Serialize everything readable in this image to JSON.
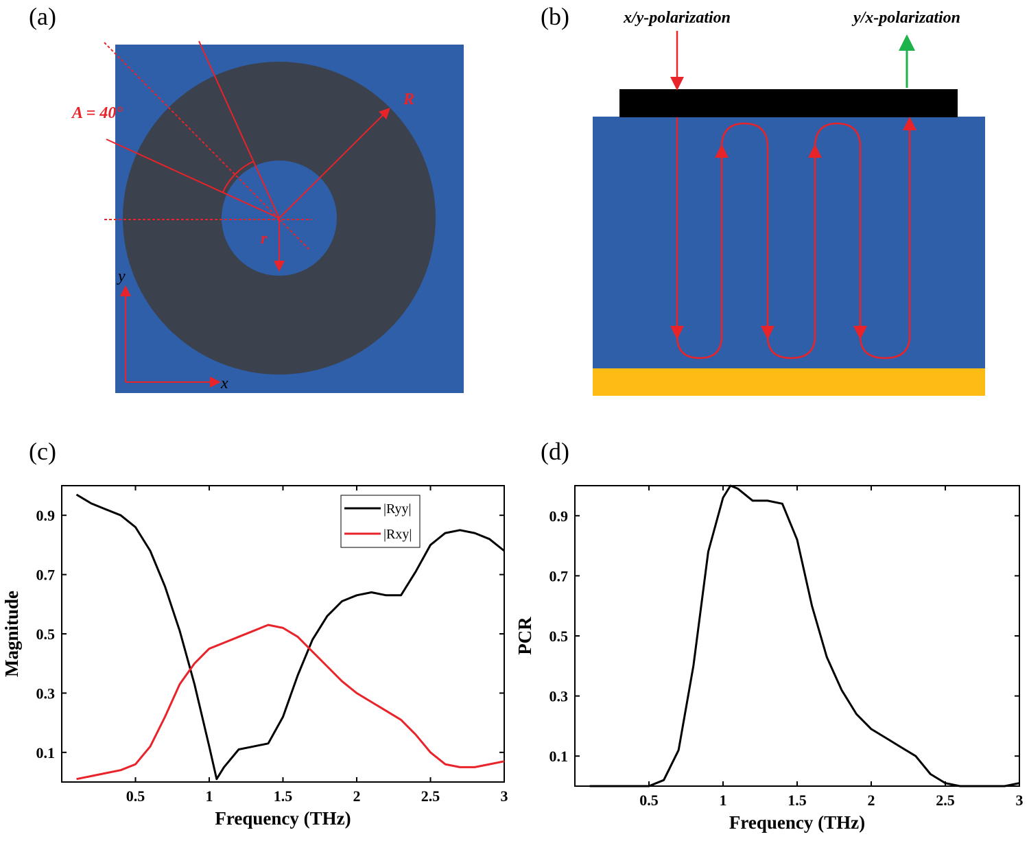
{
  "panel_labels": [
    "(a)",
    "(b)",
    "(c)",
    "(d)"
  ],
  "diagram_a": {
    "angle_label": "A = 40°",
    "outer_radius_label": "R",
    "inner_radius_label": "r",
    "x_axis_label": "x",
    "y_axis_label": "y"
  },
  "diagram_b": {
    "input_label": "x/y-polarization",
    "output_label": "y/x-polarization"
  },
  "chart_data": [
    {
      "type": "line",
      "xlabel": "Frequency (THz)",
      "ylabel": "Magnitude",
      "x": [
        0.1,
        0.2,
        0.3,
        0.4,
        0.5,
        0.6,
        0.7,
        0.8,
        0.9,
        1.0,
        1.05,
        1.1,
        1.2,
        1.3,
        1.4,
        1.5,
        1.6,
        1.7,
        1.8,
        1.9,
        2.0,
        2.1,
        2.2,
        2.3,
        2.4,
        2.5,
        2.6,
        2.7,
        2.8,
        2.9,
        3.0
      ],
      "series": [
        {
          "name": "|Ryy|",
          "color": "#000000",
          "values": [
            0.97,
            0.94,
            0.92,
            0.9,
            0.86,
            0.78,
            0.66,
            0.51,
            0.33,
            0.12,
            0.01,
            0.05,
            0.11,
            0.12,
            0.13,
            0.22,
            0.36,
            0.48,
            0.56,
            0.61,
            0.63,
            0.64,
            0.63,
            0.63,
            0.71,
            0.8,
            0.84,
            0.85,
            0.84,
            0.82,
            0.78
          ]
        },
        {
          "name": "|Rxy|",
          "color": "#e8232a",
          "values": [
            0.01,
            0.02,
            0.03,
            0.04,
            0.06,
            0.12,
            0.22,
            0.33,
            0.4,
            0.45,
            0.46,
            0.47,
            0.49,
            0.51,
            0.53,
            0.52,
            0.49,
            0.44,
            0.39,
            0.34,
            0.3,
            0.27,
            0.24,
            0.21,
            0.16,
            0.1,
            0.06,
            0.05,
            0.05,
            0.06,
            0.07
          ]
        }
      ],
      "xlim": [
        0,
        3
      ],
      "ylim": [
        0,
        1
      ],
      "xticks": [
        0.5,
        1,
        1.5,
        2,
        2.5,
        3
      ],
      "yticks": [
        0.1,
        0.3,
        0.5,
        0.7,
        0.9
      ],
      "legend": "upper right"
    },
    {
      "type": "line",
      "xlabel": "Frequency (THz)",
      "ylabel": "PCR",
      "x": [
        0.1,
        0.2,
        0.3,
        0.4,
        0.5,
        0.6,
        0.7,
        0.8,
        0.9,
        1.0,
        1.05,
        1.1,
        1.2,
        1.3,
        1.4,
        1.5,
        1.6,
        1.7,
        1.8,
        1.9,
        2.0,
        2.1,
        2.2,
        2.3,
        2.4,
        2.5,
        2.6,
        2.7,
        2.8,
        2.9,
        3.0
      ],
      "series": [
        {
          "color": "#000000",
          "values": [
            0.0,
            0.0,
            0.0,
            0.0,
            0.0,
            0.02,
            0.12,
            0.4,
            0.78,
            0.96,
            1.0,
            0.99,
            0.95,
            0.95,
            0.94,
            0.82,
            0.6,
            0.43,
            0.32,
            0.24,
            0.19,
            0.16,
            0.13,
            0.1,
            0.04,
            0.01,
            0.0,
            0.0,
            0.0,
            0.0,
            0.01
          ]
        }
      ],
      "xlim": [
        0,
        3
      ],
      "ylim": [
        0,
        1
      ],
      "xticks": [
        0.5,
        1,
        1.5,
        2,
        2.5,
        3
      ],
      "yticks": [
        0.1,
        0.3,
        0.5,
        0.7,
        0.9
      ]
    }
  ]
}
